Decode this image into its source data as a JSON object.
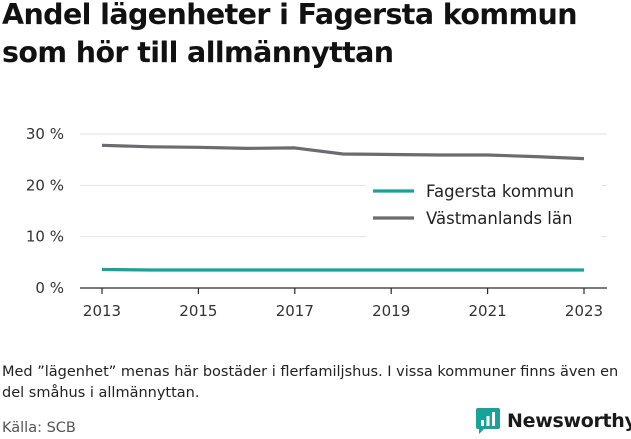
{
  "title": "Andel lägenheter i Fagersta kommun som hör till allmännyttan",
  "note": "Med ”lägenhet” menas här bostäder i flerfamiljshus. I vissa kommuner finns även en del småhus i allmännyttan.",
  "source": "Källa: SCB",
  "brand": {
    "name": "Newsworthy",
    "icon": "newsworthy-logo-icon"
  },
  "colors": {
    "fagersta": "#17a398",
    "vastmanland": "#6b6b70",
    "grid": "#e3e3e3",
    "brand": "#17a398"
  },
  "chart_data": {
    "type": "line",
    "x": [
      2013,
      2014,
      2015,
      2016,
      2017,
      2018,
      2019,
      2020,
      2021,
      2022,
      2023
    ],
    "xticks": [
      2013,
      2015,
      2017,
      2019,
      2021,
      2023
    ],
    "xtick_labels": [
      "2013",
      "2015",
      "2017",
      "2019",
      "2021",
      "2023"
    ],
    "yticks": [
      0,
      10,
      20,
      30
    ],
    "ytick_labels": [
      "0 %",
      "10 %",
      "20 %",
      "30 %"
    ],
    "ylim": [
      0,
      30
    ],
    "grid": true,
    "legend_position": "right",
    "series": [
      {
        "name": "Fagersta kommun",
        "color": "#17a398",
        "values": [
          3.6,
          3.5,
          3.5,
          3.5,
          3.5,
          3.5,
          3.5,
          3.5,
          3.5,
          3.5,
          3.5
        ]
      },
      {
        "name": "Västmanlands län",
        "color": "#6b6b70",
        "values": [
          27.8,
          27.5,
          27.4,
          27.2,
          27.3,
          26.1,
          26.0,
          25.9,
          25.9,
          25.6,
          25.2
        ]
      }
    ]
  }
}
